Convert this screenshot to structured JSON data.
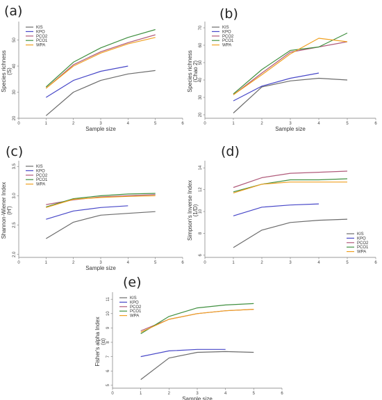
{
  "colors": {
    "KIS": "#6b6b6b",
    "KPO": "#4747c8",
    "PCO2": "#b05a7a",
    "PCO1": "#3f8f3f",
    "WPA": "#f0a020"
  },
  "chart_data": [
    {
      "label": "(a)",
      "type": "line",
      "xlabel": "Sample size",
      "ylabel": [
        "Species richness",
        "(S)"
      ],
      "xlim": [
        0,
        6
      ],
      "ylim": [
        20,
        56
      ],
      "xticks": [
        "0",
        "1",
        "2",
        "3",
        "4",
        "5",
        "6"
      ],
      "yticks": [
        20,
        30,
        40,
        50
      ],
      "ytick_labels": [
        "20",
        "30",
        "40",
        "50"
      ],
      "legend_position": "top-left",
      "series": [
        {
          "name": "KIS",
          "x": [
            1,
            2,
            3,
            4,
            5
          ],
          "y": [
            21,
            30,
            34.5,
            37,
            38.3
          ]
        },
        {
          "name": "KPO",
          "x": [
            1,
            2,
            3,
            4
          ],
          "y": [
            28,
            34.5,
            38,
            40
          ]
        },
        {
          "name": "PCO2",
          "x": [
            1,
            2,
            3,
            4,
            5
          ],
          "y": [
            31.5,
            40.5,
            45.5,
            49,
            52
          ]
        },
        {
          "name": "PCO1",
          "x": [
            1,
            2,
            3,
            4,
            5
          ],
          "y": [
            32,
            41.5,
            47,
            51,
            54
          ]
        },
        {
          "name": "WPA",
          "x": [
            1,
            2,
            3,
            4,
            5
          ],
          "y": [
            31.5,
            40,
            45,
            48.5,
            51
          ]
        }
      ]
    },
    {
      "label": "(b)",
      "type": "line",
      "xlabel": "Sample size",
      "ylabel": [
        "Species richness",
        "(Chao 2)"
      ],
      "xlim": [
        0,
        6
      ],
      "ylim": [
        18,
        72
      ],
      "xticks": [
        "0",
        "1",
        "2",
        "3",
        "4",
        "5",
        "6"
      ],
      "yticks": [
        20,
        30,
        40,
        50,
        60,
        70
      ],
      "ytick_labels": [
        "20",
        "30",
        "40",
        "50",
        "60",
        "70"
      ],
      "legend_position": "top-left",
      "series": [
        {
          "name": "KIS",
          "x": [
            1,
            2,
            3,
            4,
            5
          ],
          "y": [
            21,
            36,
            39.5,
            41,
            40
          ]
        },
        {
          "name": "KPO",
          "x": [
            1,
            2,
            3,
            4
          ],
          "y": [
            28,
            36.5,
            41,
            44
          ]
        },
        {
          "name": "PCO2",
          "x": [
            1,
            2,
            3,
            4,
            5
          ],
          "y": [
            31.5,
            44,
            56,
            59,
            62
          ]
        },
        {
          "name": "PCO1",
          "x": [
            1,
            2,
            3,
            4,
            5
          ],
          "y": [
            32,
            46,
            57,
            59,
            67
          ]
        },
        {
          "name": "WPA",
          "x": [
            1,
            2,
            3,
            4,
            5
          ],
          "y": [
            31.5,
            43,
            55,
            64,
            62
          ]
        }
      ]
    },
    {
      "label": "(c)",
      "type": "line",
      "xlabel": "Sample size",
      "ylabel": [
        "Shannon-Wiener Index",
        "(H')"
      ],
      "xlim": [
        0,
        6
      ],
      "ylim": [
        1.95,
        3.55
      ],
      "xticks": [
        "0",
        "1",
        "2",
        "3",
        "4",
        "5",
        "6"
      ],
      "yticks": [
        2.0,
        2.5,
        3.0,
        3.5
      ],
      "ytick_labels": [
        "2.0",
        "2.5",
        "3.0",
        "3.5"
      ],
      "legend_position": "top-left",
      "series": [
        {
          "name": "KIS",
          "x": [
            1,
            2,
            3,
            4,
            5
          ],
          "y": [
            2.27,
            2.55,
            2.67,
            2.7,
            2.73
          ]
        },
        {
          "name": "KPO",
          "x": [
            1,
            2,
            3,
            4
          ],
          "y": [
            2.6,
            2.74,
            2.8,
            2.83
          ]
        },
        {
          "name": "PCO2",
          "x": [
            1,
            2,
            3,
            4,
            5
          ],
          "y": [
            2.85,
            2.93,
            2.98,
            3.0,
            3.02
          ]
        },
        {
          "name": "PCO1",
          "x": [
            1,
            2,
            3,
            4,
            5
          ],
          "y": [
            2.81,
            2.95,
            3.0,
            3.03,
            3.04
          ]
        },
        {
          "name": "WPA",
          "x": [
            1,
            2,
            3,
            4,
            5
          ],
          "y": [
            2.8,
            2.94,
            2.97,
            2.99,
            3.0
          ]
        }
      ]
    },
    {
      "label": "(d)",
      "type": "line",
      "xlabel": "",
      "ylabel": [
        "Simpson's Inverse Index",
        "(1/D)"
      ],
      "xlim": [
        0,
        6
      ],
      "ylim": [
        5.8,
        14.4
      ],
      "xticks": [
        "0",
        "1",
        "2",
        "3",
        "4",
        "5",
        "6"
      ],
      "yticks": [
        6,
        8,
        10,
        12,
        14
      ],
      "ytick_labels": [
        "6",
        "8",
        "10",
        "12",
        "14"
      ],
      "legend_position": "bottom-right",
      "series": [
        {
          "name": "KIS",
          "x": [
            1,
            2,
            3,
            4,
            5
          ],
          "y": [
            6.7,
            8.3,
            9.0,
            9.2,
            9.3
          ]
        },
        {
          "name": "KPO",
          "x": [
            1,
            2,
            3,
            4
          ],
          "y": [
            9.6,
            10.4,
            10.6,
            10.7
          ]
        },
        {
          "name": "PCO2",
          "x": [
            1,
            2,
            3,
            4,
            5
          ],
          "y": [
            12.2,
            13.1,
            13.5,
            13.6,
            13.7
          ]
        },
        {
          "name": "PCO1",
          "x": [
            1,
            2,
            3,
            4,
            5
          ],
          "y": [
            11.8,
            12.5,
            12.9,
            12.9,
            13.0
          ]
        },
        {
          "name": "WPA",
          "x": [
            1,
            2,
            3,
            4,
            5
          ],
          "y": [
            11.7,
            12.5,
            12.7,
            12.7,
            12.7
          ]
        }
      ]
    },
    {
      "label": "(e)",
      "type": "line",
      "xlabel": "Sample size",
      "ylabel": [
        "Fisher's alpha Index",
        "(α)"
      ],
      "xlim": [
        0,
        6
      ],
      "ylim": [
        4.8,
        11.3
      ],
      "xticks": [
        "0",
        "1",
        "2",
        "3",
        "4",
        "5",
        "6"
      ],
      "yticks": [
        5,
        6,
        7,
        8,
        9,
        10,
        11
      ],
      "ytick_labels": [
        "5",
        "6",
        "7",
        "8",
        "9",
        "10",
        "11"
      ],
      "legend_position": "top-left",
      "series": [
        {
          "name": "KIS",
          "x": [
            1,
            2,
            3,
            4,
            5
          ],
          "y": [
            5.4,
            6.9,
            7.3,
            7.35,
            7.3
          ]
        },
        {
          "name": "KPO",
          "x": [
            1,
            2,
            3,
            4
          ],
          "y": [
            7.0,
            7.4,
            7.5,
            7.5
          ]
        },
        {
          "name": "PCO2",
          "x": [
            1,
            2,
            3,
            4,
            5
          ],
          "y": [
            8.8,
            9.6,
            10.0,
            10.2,
            10.3
          ]
        },
        {
          "name": "PCO1",
          "x": [
            1,
            2,
            3,
            4,
            5
          ],
          "y": [
            8.6,
            9.8,
            10.4,
            10.6,
            10.7
          ]
        },
        {
          "name": "WPA",
          "x": [
            1,
            2,
            3,
            4,
            5
          ],
          "y": [
            8.7,
            9.6,
            10.0,
            10.2,
            10.3
          ]
        }
      ]
    }
  ]
}
